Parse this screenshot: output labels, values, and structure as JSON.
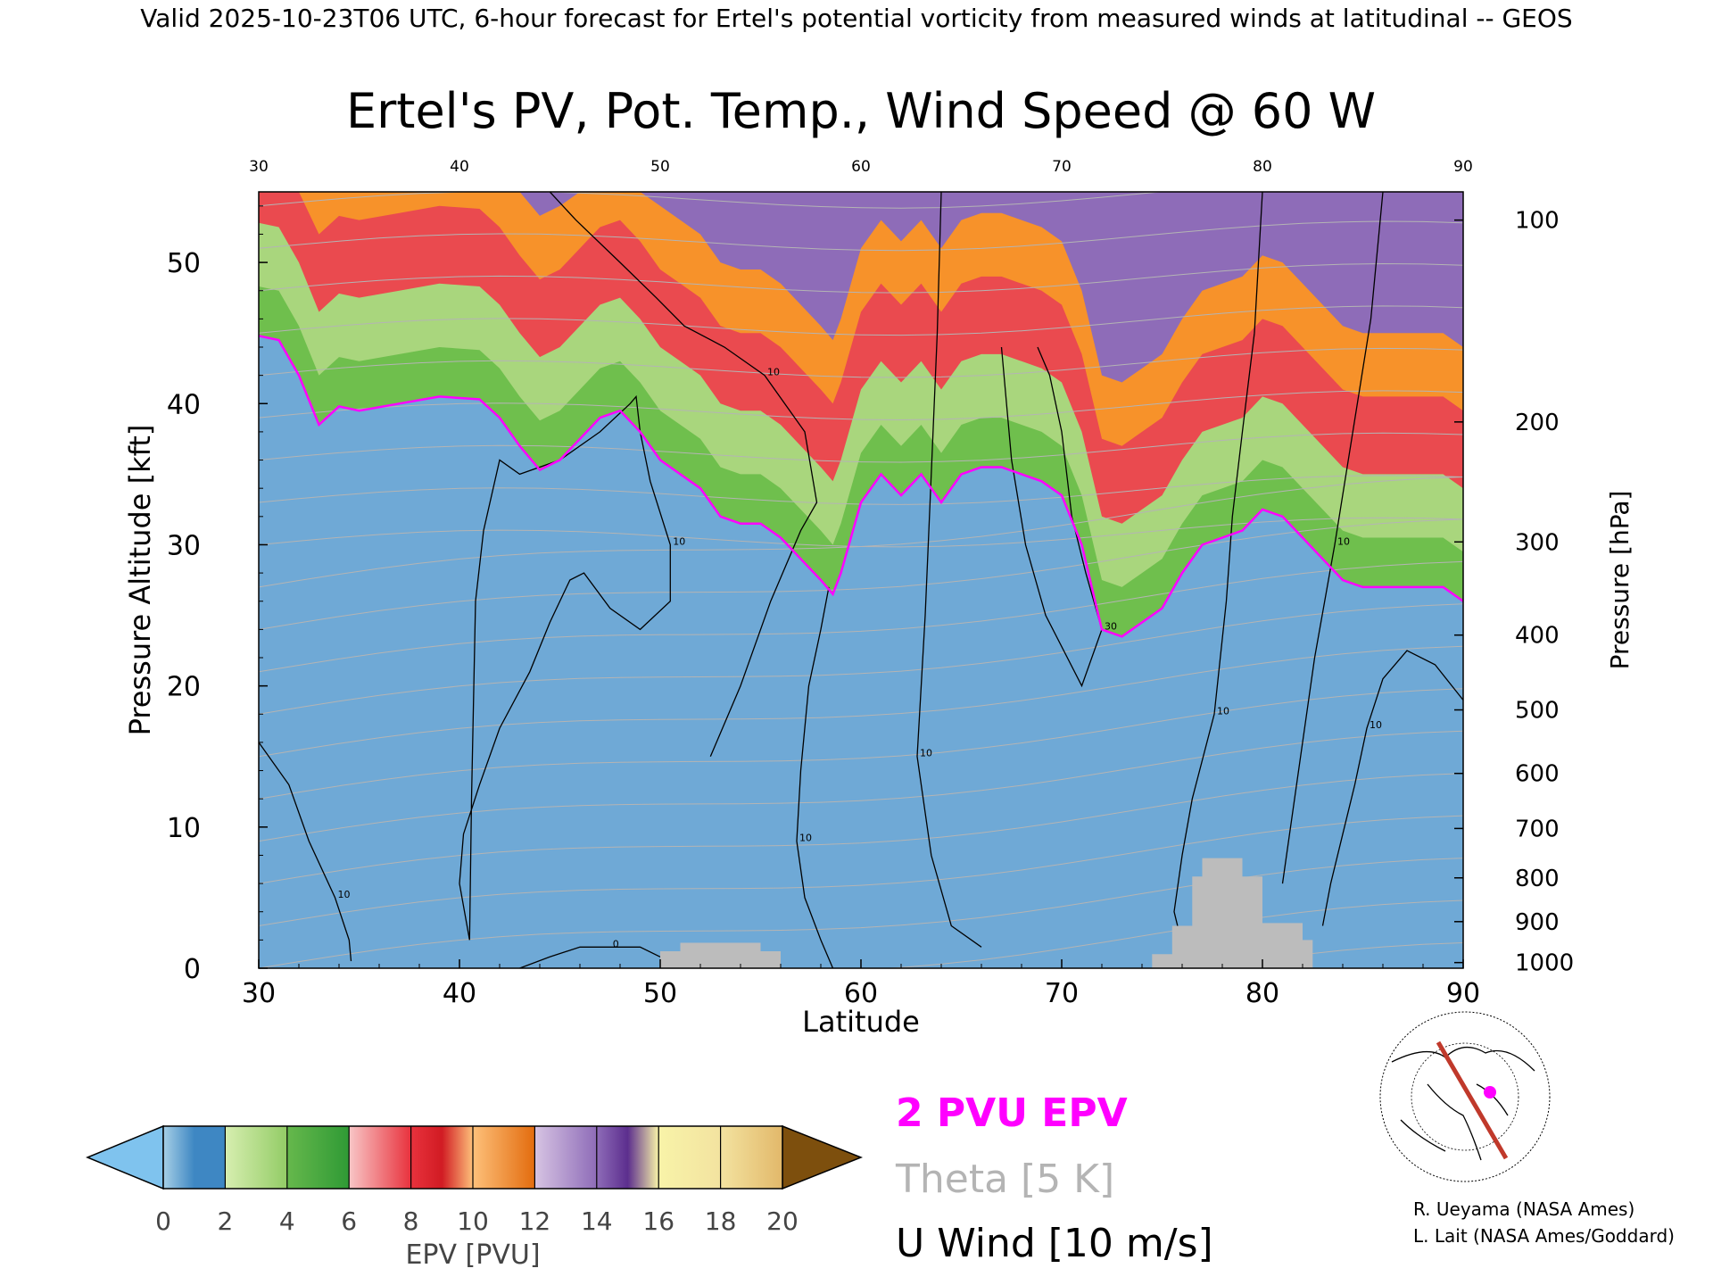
{
  "header": {
    "valid_line": "Valid 2025-10-23T06 UTC, 6-hour forecast for Ertel's potential vorticity from measured winds at latitudinal -- GEOS"
  },
  "chart_data": {
    "type": "heatmap",
    "title": "Ertel's PV, Pot. Temp., Wind Speed @ 60 W",
    "xlabel": "Latitude",
    "ylabel": "Pressure Altitude [kft]",
    "ylabel_right": "Pressure [hPa]",
    "xlim": [
      30,
      90
    ],
    "ylim": [
      0,
      55
    ],
    "x_ticks": [
      "30",
      "40",
      "50",
      "60",
      "70",
      "80",
      "90"
    ],
    "y_ticks": [
      "0",
      "10",
      "20",
      "30",
      "40",
      "50"
    ],
    "pressure_ticks": [
      {
        "label": "100",
        "kft": 53.0
      },
      {
        "label": "200",
        "kft": 38.7
      },
      {
        "label": "300",
        "kft": 30.2
      },
      {
        "label": "400",
        "kft": 23.6
      },
      {
        "label": "500",
        "kft": 18.3
      },
      {
        "label": "600",
        "kft": 13.8
      },
      {
        "label": "700",
        "kft": 9.9
      },
      {
        "label": "800",
        "kft": 6.4
      },
      {
        "label": "900",
        "kft": 3.3
      },
      {
        "label": "1000",
        "kft": 0.4
      }
    ],
    "tropopause_2pvu": {
      "name": "2 PVU EPV",
      "lat": [
        30,
        31,
        32,
        33,
        34,
        35,
        37,
        39,
        41,
        42,
        43,
        44,
        45,
        46,
        47,
        48,
        49,
        50,
        51,
        52,
        53,
        54,
        55,
        56,
        57,
        58,
        58.6,
        59,
        60,
        61,
        62,
        63,
        64,
        65,
        66,
        67,
        68,
        69,
        70,
        71,
        72,
        73,
        74,
        75,
        76,
        77,
        78,
        79,
        80,
        81,
        82,
        83,
        84,
        85,
        86,
        87,
        88,
        89,
        90
      ],
      "kft": [
        44.8,
        44.5,
        42.0,
        38.5,
        39.8,
        39.5,
        40.0,
        40.5,
        40.3,
        39.0,
        37.0,
        35.3,
        36.0,
        37.5,
        39.0,
        39.5,
        38.0,
        36.0,
        35.0,
        34.0,
        32.0,
        31.5,
        31.5,
        30.5,
        29.0,
        27.5,
        26.5,
        28.0,
        33.0,
        35.0,
        33.5,
        35.0,
        33.0,
        35.0,
        35.5,
        35.5,
        35.0,
        34.5,
        33.5,
        30.0,
        24.0,
        23.5,
        24.5,
        25.5,
        28.0,
        30.0,
        30.5,
        31.0,
        32.5,
        32.0,
        30.5,
        29.0,
        27.5,
        27.0,
        27.0,
        27.0,
        27.0,
        27.0,
        26.0
      ]
    },
    "wind_10ms_contours": [
      {
        "label": "10",
        "lat": [
          30,
          31.5,
          32.5,
          33.8,
          34.5,
          34.6
        ],
        "kft": [
          16.0,
          13.0,
          9.0,
          5.0,
          2.0,
          0.5
        ]
      },
      {
        "label": "10",
        "lat": [
          40.5,
          40.0,
          40.2,
          41.0,
          42.0,
          43.5,
          44.5,
          45.5,
          46.2,
          47.5,
          49.0,
          50.5,
          50.5,
          49.5,
          49.0,
          48.8,
          48.5,
          47.0,
          45.0,
          43.0,
          42.0,
          41.2,
          40.8,
          40.6,
          40.5
        ],
        "kft": [
          2.0,
          6.0,
          9.5,
          13.0,
          17.0,
          21.0,
          24.5,
          27.5,
          28.0,
          25.5,
          24.0,
          26.0,
          30.0,
          34.5,
          38.0,
          40.5,
          40.0,
          38.0,
          36.0,
          35.0,
          36.0,
          31.0,
          26.0,
          12.0,
          2.0
        ]
      },
      {
        "label": "0",
        "lat": [
          43.0,
          44.5,
          46.0,
          47.5,
          49.0,
          50.0
        ],
        "kft": [
          0.0,
          0.8,
          1.5,
          1.5,
          1.5,
          0.8
        ]
      },
      {
        "label": "10",
        "lat": [
          52.5,
          54.0,
          55.5,
          57.0,
          57.8,
          57.2,
          55.2,
          53.2,
          51.2,
          49.8,
          48.0,
          45.8,
          44.5
        ],
        "kft": [
          15.0,
          20.0,
          26.0,
          31.0,
          33.0,
          38.0,
          42.0,
          44.0,
          45.5,
          47.5,
          50.0,
          53.0,
          55.0
        ]
      },
      {
        "label": "10",
        "lat": [
          58.4,
          58.0,
          57.4,
          57.0,
          56.8,
          57.2,
          58.0,
          58.6
        ],
        "kft": [
          27.0,
          24.0,
          20.0,
          14.0,
          9.0,
          5.0,
          2.0,
          0.0
        ]
      },
      {
        "label": "30",
        "lat": [
          67.0,
          67.5,
          68.2,
          69.2,
          71.0,
          72.0,
          71.2,
          70.5,
          70.0,
          69.4,
          68.8
        ],
        "kft": [
          44.0,
          36.0,
          30.0,
          25.0,
          20.0,
          24.0,
          28.0,
          32.0,
          38.0,
          42.0,
          44.0
        ]
      },
      {
        "label": "10",
        "lat": [
          64.0,
          63.8,
          63.5,
          63.2,
          62.8,
          63.5,
          64.5,
          66.0
        ],
        "kft": [
          55.0,
          45.0,
          35.0,
          25.0,
          15.0,
          8.0,
          3.0,
          1.5
        ]
      },
      {
        "label": "10",
        "lat": [
          80.0,
          79.6,
          79.0,
          78.5,
          78.2,
          77.6,
          76.5,
          76.0,
          75.6,
          76.2
        ],
        "kft": [
          55.0,
          45.0,
          38.0,
          32.0,
          26.0,
          18.0,
          12.0,
          8.0,
          4.0,
          0.5
        ]
      },
      {
        "label": "10",
        "lat": [
          86.0,
          85.4,
          84.5,
          83.6,
          82.6,
          81.8,
          81.0
        ],
        "kft": [
          55.0,
          46.0,
          38.0,
          30.0,
          22.0,
          14.0,
          6.0
        ]
      },
      {
        "label": "10",
        "lat": [
          90,
          88.6,
          87.2,
          86.0,
          85.2,
          84.6,
          84.0,
          83.4,
          83.0
        ],
        "kft": [
          19.0,
          21.5,
          22.5,
          20.5,
          17.0,
          13.0,
          9.5,
          6.0,
          3.0
        ]
      }
    ],
    "topography": {
      "lat": [
        50.0,
        50.0,
        51.0,
        51.0,
        55.0,
        55.0,
        56.0,
        56.0,
        74.5,
        74.5,
        75.5,
        75.5,
        76.5,
        76.5,
        77.0,
        77.0,
        79.0,
        79.0,
        80.0,
        80.0,
        82.0,
        82.0,
        82.5,
        82.5
      ],
      "kft": [
        0.0,
        1.2,
        1.2,
        1.8,
        1.8,
        1.2,
        1.2,
        0.0,
        0.0,
        1.0,
        1.0,
        3.0,
        3.0,
        6.5,
        6.5,
        7.8,
        7.8,
        6.5,
        6.5,
        3.2,
        3.2,
        2.0,
        2.0,
        0.0
      ]
    },
    "grid": false,
    "legend": [
      {
        "label": "2 PVU EPV",
        "color": "#ff00ff"
      },
      {
        "label": "Theta [5 K]",
        "color": "#b4b4b4"
      },
      {
        "label": "U Wind [10 m/s]",
        "color": "#000000"
      }
    ]
  },
  "colorbar": {
    "label": "EPV [PVU]",
    "ticks": [
      "0",
      "2",
      "4",
      "6",
      "8",
      "10",
      "12",
      "14",
      "16",
      "18",
      "20"
    ],
    "colors": {
      "under": "#7fc3ee",
      "c0_1": "#8ec0df",
      "c1_2": "#3e87c3",
      "c2_3": "#bfe39b",
      "c3_4": "#93cc66",
      "c4_5": "#5fb34b",
      "c5_6": "#2f9a35",
      "c6_7": "#f5b7b7",
      "c7_8": "#f07e84",
      "c8_9": "#e8323d",
      "c9_10": "#d11b23",
      "c10_11": "#fdc07a",
      "c11_12": "#f9a14c",
      "c12_13": "#f6891b",
      "c13_14": "#e36c0e",
      "c14_15": "#c9b5d9",
      "c15_16": "#9a7dbf",
      "c16_17": "#6d3f9c",
      "c17_18": "#f5ef9c",
      "c18_19": "#f3e3a0",
      "c19_20": "#e8c67a",
      "over": "#7d4f0d"
    }
  },
  "colors": {
    "tropopause": "#ff00ff",
    "theta": "#b4b4b4",
    "topography": "#bcbcbc",
    "route": "#c0392b",
    "route_point": "#ff00ff"
  },
  "credits": {
    "line1": "R. Ueyama (NASA Ames)",
    "line2": "L. Lait (NASA Ames/Goddard)"
  },
  "inset": {
    "icon": "polar-map-icon"
  }
}
